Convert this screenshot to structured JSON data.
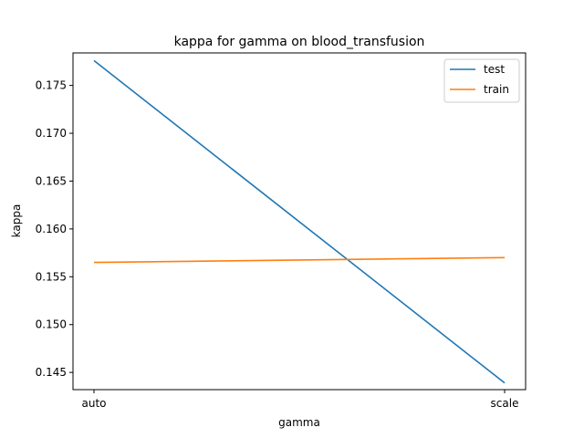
{
  "chart_data": {
    "type": "line",
    "title": "kappa for gamma on  blood_transfusion",
    "xlabel": "gamma",
    "ylabel": "kappa",
    "categories": [
      "auto",
      "scale"
    ],
    "ylim": [
      0.1432,
      0.1784
    ],
    "yticks": [
      0.145,
      0.15,
      0.155,
      0.16,
      0.165,
      0.17,
      0.175
    ],
    "ytick_labels": [
      "0.145",
      "0.150",
      "0.155",
      "0.160",
      "0.165",
      "0.170",
      "0.175"
    ],
    "grid": false,
    "legend_position": "top-right",
    "series": [
      {
        "name": "test",
        "color": "#1f77b4",
        "values": [
          0.1776,
          0.1439
        ]
      },
      {
        "name": "train",
        "color": "#ff7f0e",
        "values": [
          0.1565,
          0.157
        ]
      }
    ]
  }
}
